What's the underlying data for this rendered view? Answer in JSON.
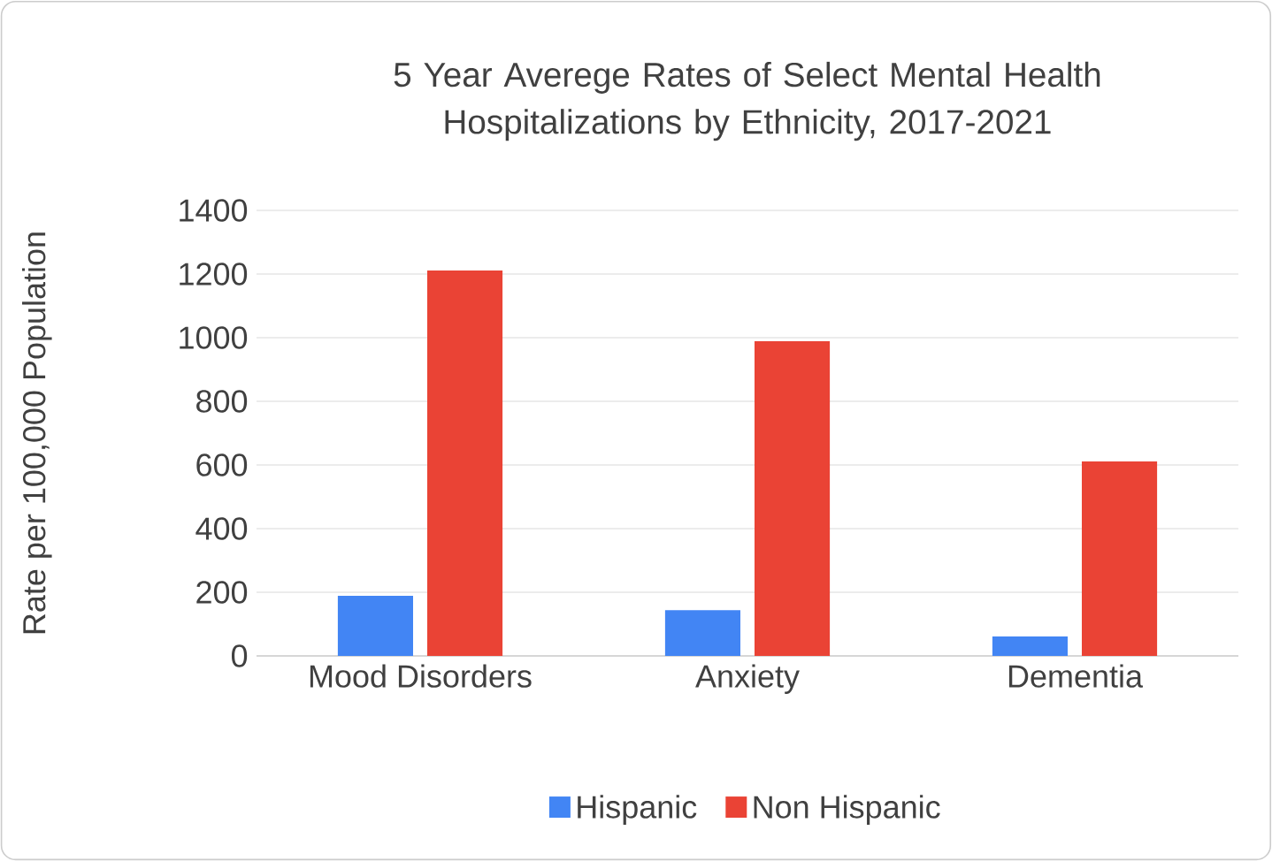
{
  "chart_data": {
    "type": "bar",
    "title": "5 Year Averege Rates of Select Mental Health Hospitalizations by Ethnicity, 2017-2021",
    "ylabel": "Rate per 100,000 Population",
    "categories": [
      "Mood Disorders",
      "Anxiety",
      "Dementia"
    ],
    "series": [
      {
        "name": "Hispanic",
        "color": "#4285f4",
        "values": [
          189,
          144,
          61
        ]
      },
      {
        "name": "Non Hispanic",
        "color": "#ea4335",
        "values": [
          1211,
          989,
          611
        ]
      }
    ],
    "ylim": [
      0,
      1400
    ],
    "yticks": [
      0,
      200,
      400,
      600,
      800,
      1000,
      1200,
      1400
    ],
    "grid": "y",
    "legend": "bottom"
  }
}
